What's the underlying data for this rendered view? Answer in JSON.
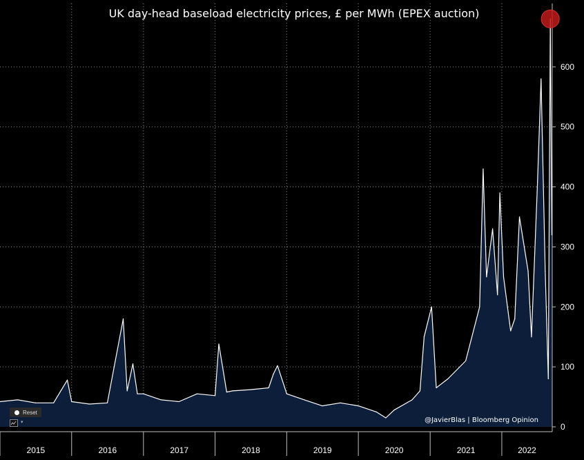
{
  "title": "UK day-head baseload electricity prices, £ per MWh (EPEX auction)",
  "credit": "@JavierBlas | Bloomberg Opinion",
  "reset_label": "Reset",
  "colors": {
    "background": "#000000",
    "area_fill": "#0d1e3a",
    "line": "#ffffff",
    "highlight": "#c01a1a"
  },
  "chart_data": {
    "type": "area",
    "title": "UK day-head baseload electricity prices, £ per MWh (EPEX auction)",
    "xlabel": "",
    "ylabel": "",
    "x_ticks": [
      "2015",
      "2016",
      "2017",
      "2018",
      "2019",
      "2020",
      "2021",
      "2022"
    ],
    "y_ticks": [
      0,
      100,
      200,
      300,
      400,
      500,
      600
    ],
    "xlim": [
      "2015-01-01",
      "2022-09-15"
    ],
    "ylim": [
      0,
      700
    ],
    "grid": true,
    "y_axis_side": "right",
    "series": [
      {
        "x": [
          "2015-01-01",
          "2015-04-01",
          "2015-07-01",
          "2015-10-01",
          "2015-12-10",
          "2016-01-01",
          "2016-04-01",
          "2016-07-01",
          "2016-09-20",
          "2016-10-10",
          "2016-11-08",
          "2016-12-01",
          "2017-01-01",
          "2017-04-01",
          "2017-07-01",
          "2017-10-01",
          "2018-01-01",
          "2018-01-20",
          "2018-03-01",
          "2018-04-01",
          "2018-07-01",
          "2018-10-01",
          "2018-10-25",
          "2018-11-15",
          "2019-01-01",
          "2019-04-01",
          "2019-07-01",
          "2019-10-01",
          "2020-01-01",
          "2020-04-01",
          "2020-05-20",
          "2020-07-01",
          "2020-10-01",
          "2020-11-10",
          "2020-12-01",
          "2021-01-08",
          "2021-02-01",
          "2021-04-01",
          "2021-07-01",
          "2021-09-10",
          "2021-09-28",
          "2021-10-15",
          "2021-11-15",
          "2021-12-10",
          "2021-12-22",
          "2022-01-10",
          "2022-02-15",
          "2022-03-08",
          "2022-04-01",
          "2022-05-15",
          "2022-06-01",
          "2022-07-01",
          "2022-07-20",
          "2022-08-10",
          "2022-08-26",
          "2022-09-05",
          "2022-09-13"
        ],
        "y": [
          42,
          45,
          40,
          40,
          78,
          42,
          38,
          40,
          180,
          60,
          105,
          55,
          55,
          45,
          42,
          55,
          52,
          138,
          58,
          60,
          62,
          65,
          88,
          102,
          55,
          45,
          35,
          40,
          35,
          25,
          15,
          28,
          45,
          60,
          150,
          200,
          65,
          80,
          110,
          200,
          430,
          250,
          330,
          220,
          390,
          250,
          160,
          180,
          350,
          260,
          150,
          400,
          580,
          260,
          80,
          680,
          320
        ]
      }
    ]
  }
}
